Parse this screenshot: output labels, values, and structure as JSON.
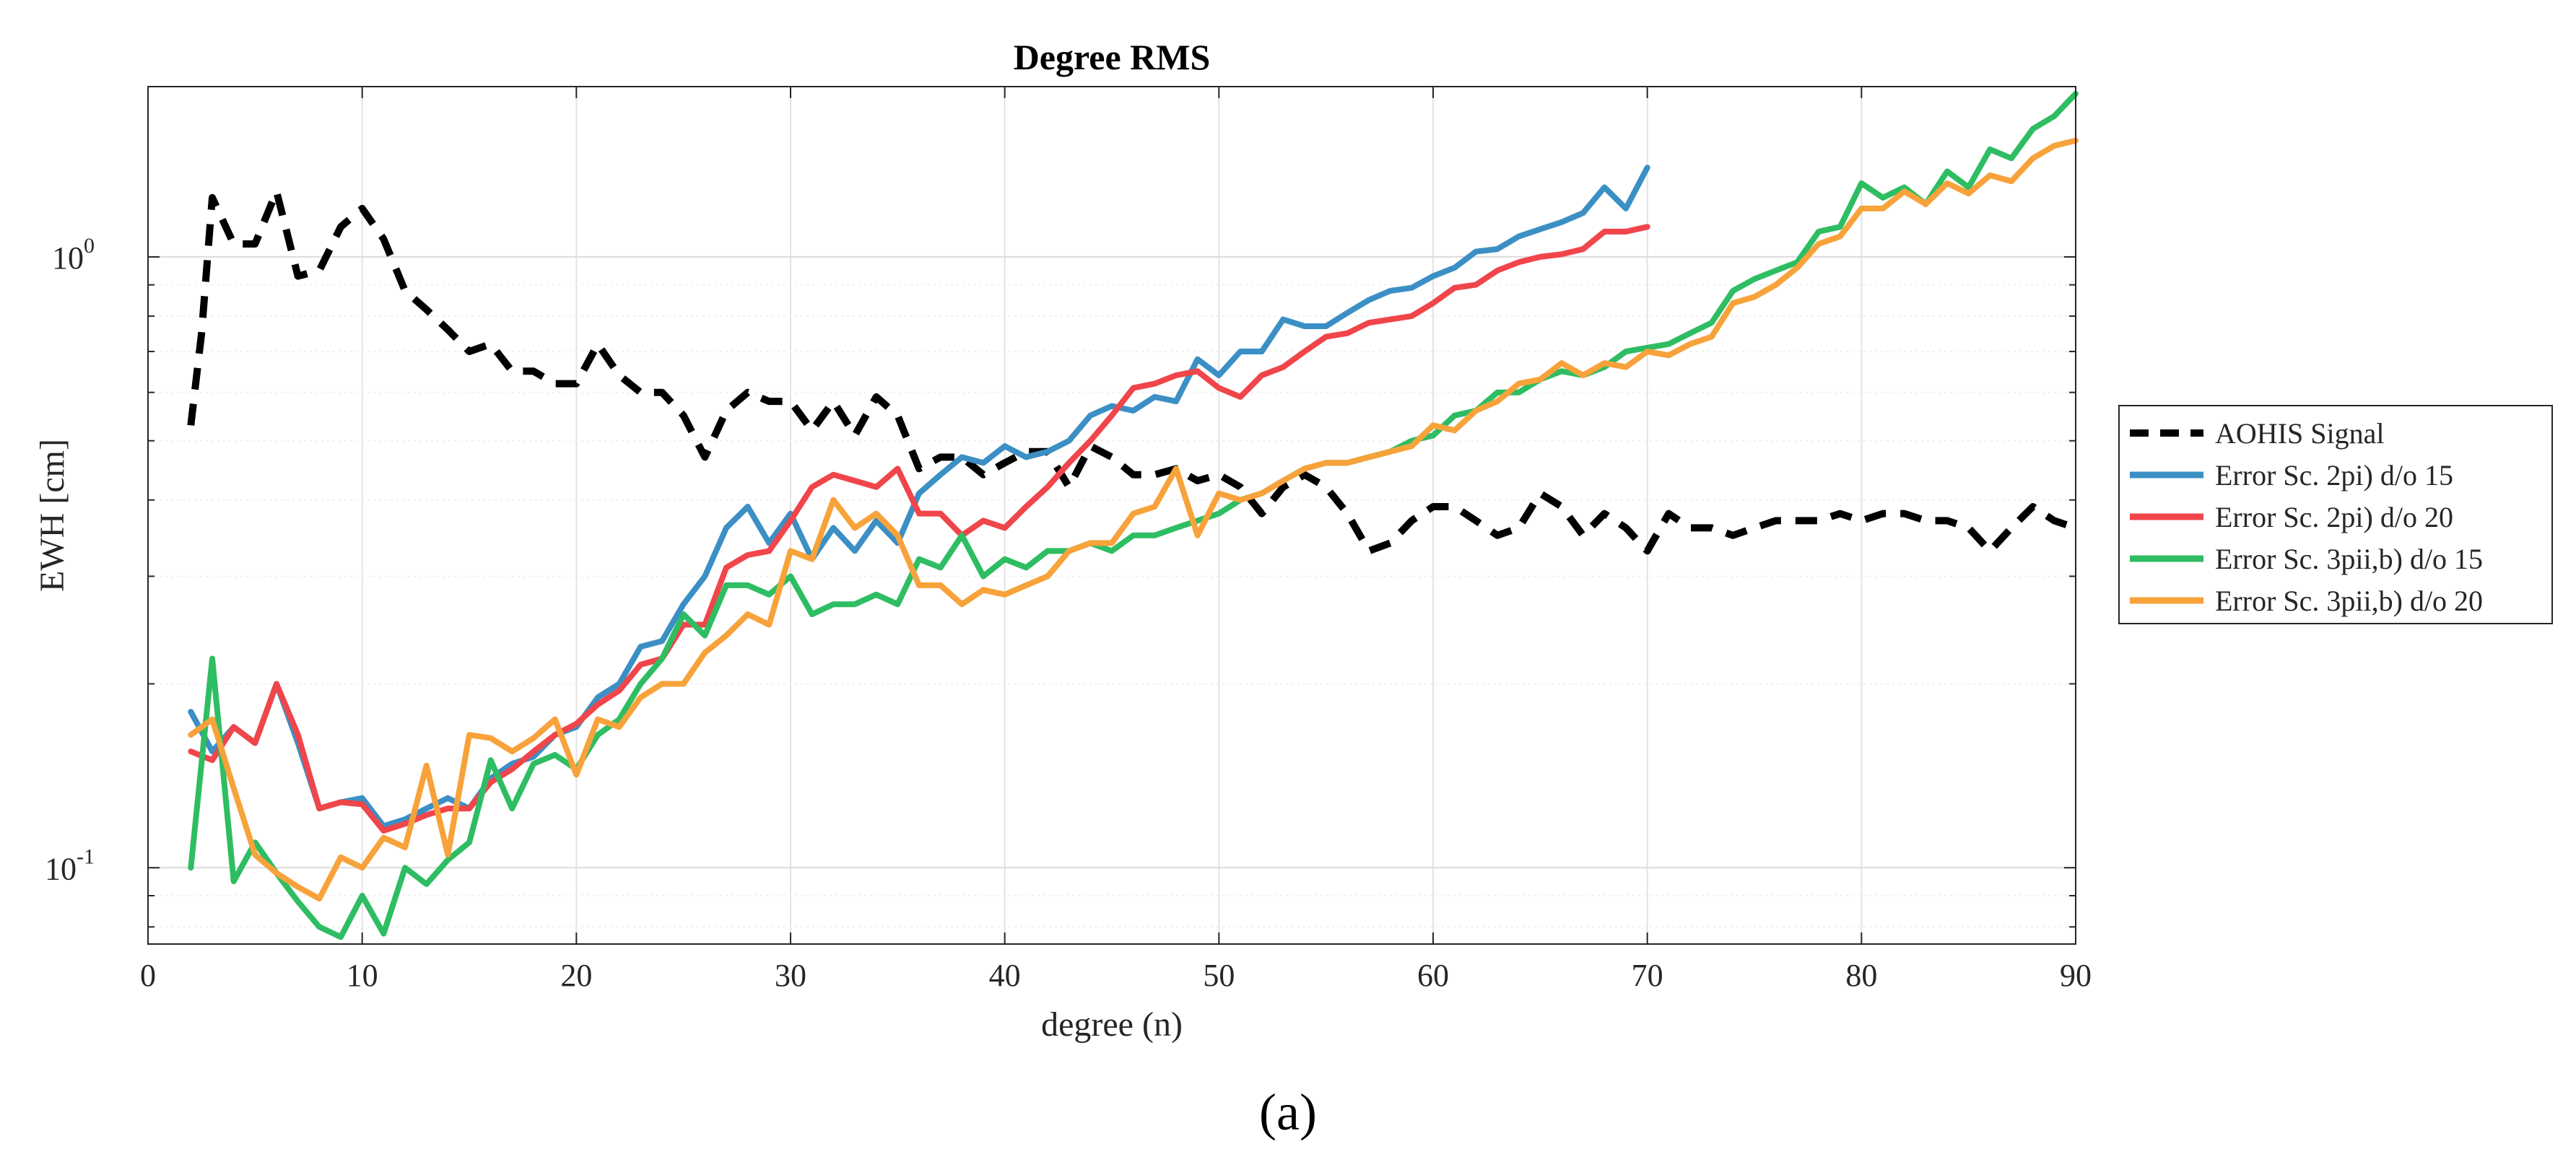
{
  "chart_data": {
    "type": "line",
    "title": "Degree RMS",
    "xlabel": "degree (n)",
    "ylabel": "EWH [cm]",
    "xlim": [
      0,
      90
    ],
    "ylim": [
      0.075,
      1.9
    ],
    "yscale": "log",
    "grid": true,
    "x_ticks": [
      "0",
      "10",
      "20",
      "30",
      "40",
      "50",
      "60",
      "70",
      "80",
      "90"
    ],
    "y_ticks": [
      {
        "base": "10",
        "exp": "-1"
      },
      {
        "base": "10",
        "exp": "0"
      }
    ],
    "legend_position": "outside-right",
    "caption": "(a)",
    "series": [
      {
        "name": "AOHIS Signal",
        "color": "#000000",
        "dash": "dashed",
        "x": [
          2,
          2.5,
          3,
          4,
          5,
          6,
          7,
          8,
          9,
          10,
          11,
          12,
          13,
          14,
          15,
          16,
          17,
          18,
          19,
          20,
          21,
          22,
          23,
          24,
          25,
          26,
          27,
          28,
          29,
          30,
          31,
          32,
          33,
          34,
          35,
          36,
          37,
          38,
          39,
          40,
          41,
          42,
          43,
          44,
          45,
          46,
          47,
          48,
          49,
          50,
          51,
          52,
          53,
          54,
          55,
          56,
          57,
          58,
          59,
          60,
          61,
          62,
          63,
          64,
          65,
          66,
          67,
          68,
          69,
          70,
          71,
          72,
          73,
          74,
          75,
          76,
          77,
          78,
          79,
          80,
          81,
          82,
          83,
          84,
          85,
          86,
          87,
          88,
          89,
          90
        ],
        "values": [
          0.53,
          0.75,
          1.25,
          1.05,
          1.05,
          1.28,
          0.93,
          0.95,
          1.12,
          1.2,
          1.07,
          0.88,
          0.82,
          0.76,
          0.7,
          0.72,
          0.65,
          0.65,
          0.62,
          0.62,
          0.72,
          0.64,
          0.6,
          0.6,
          0.55,
          0.47,
          0.56,
          0.6,
          0.58,
          0.58,
          0.52,
          0.58,
          0.51,
          0.59,
          0.55,
          0.45,
          0.47,
          0.47,
          0.44,
          0.46,
          0.48,
          0.48,
          0.42,
          0.49,
          0.47,
          0.44,
          0.44,
          0.45,
          0.43,
          0.44,
          0.42,
          0.38,
          0.42,
          0.44,
          0.42,
          0.38,
          0.33,
          0.34,
          0.37,
          0.39,
          0.39,
          0.37,
          0.35,
          0.36,
          0.41,
          0.39,
          0.35,
          0.38,
          0.36,
          0.33,
          0.38,
          0.36,
          0.36,
          0.35,
          0.36,
          0.37,
          0.37,
          0.37,
          0.38,
          0.37,
          0.38,
          0.38,
          0.37,
          0.37,
          0.36,
          0.33,
          0.36,
          0.39,
          0.37,
          0.36
        ]
      },
      {
        "name": "Error Sc. 2pi) d/o 15",
        "color": "#3b8fc4",
        "dash": "solid",
        "x": [
          2,
          3,
          4,
          5,
          6,
          7,
          8,
          9,
          10,
          11,
          12,
          13,
          14,
          15,
          16,
          17,
          18,
          19,
          20,
          21,
          22,
          23,
          24,
          25,
          26,
          27,
          28,
          29,
          30,
          31,
          32,
          33,
          34,
          35,
          36,
          37,
          38,
          39,
          40,
          41,
          42,
          43,
          44,
          45,
          46,
          47,
          48,
          49,
          50,
          51,
          52,
          53,
          54,
          55,
          56,
          57,
          58,
          59,
          60,
          61,
          62,
          63,
          64,
          65,
          66,
          67,
          68,
          69,
          70
        ],
        "values": [
          0.18,
          0.155,
          0.17,
          0.16,
          0.2,
          0.16,
          0.125,
          0.128,
          0.13,
          0.117,
          0.12,
          0.125,
          0.13,
          0.125,
          0.14,
          0.148,
          0.152,
          0.165,
          0.17,
          0.19,
          0.2,
          0.23,
          0.235,
          0.27,
          0.3,
          0.36,
          0.39,
          0.34,
          0.38,
          0.32,
          0.36,
          0.33,
          0.37,
          0.34,
          0.41,
          0.44,
          0.47,
          0.46,
          0.49,
          0.47,
          0.48,
          0.5,
          0.55,
          0.57,
          0.56,
          0.59,
          0.58,
          0.68,
          0.64,
          0.7,
          0.7,
          0.79,
          0.77,
          0.77,
          0.81,
          0.85,
          0.88,
          0.89,
          0.93,
          0.96,
          1.02,
          1.03,
          1.08,
          1.11,
          1.14,
          1.18,
          1.3,
          1.2,
          1.4
        ]
      },
      {
        "name": "Error Sc. 2pi) d/o 20",
        "color": "#f0454a",
        "dash": "solid",
        "x": [
          2,
          3,
          4,
          5,
          6,
          7,
          8,
          9,
          10,
          11,
          12,
          13,
          14,
          15,
          16,
          17,
          18,
          19,
          20,
          21,
          22,
          23,
          24,
          25,
          26,
          27,
          28,
          29,
          30,
          31,
          32,
          33,
          34,
          35,
          36,
          37,
          38,
          39,
          40,
          41,
          42,
          43,
          44,
          45,
          46,
          47,
          48,
          49,
          50,
          51,
          52,
          53,
          54,
          55,
          56,
          57,
          58,
          59,
          60,
          61,
          62,
          63,
          64,
          65,
          66,
          67,
          68,
          69,
          70
        ],
        "values": [
          0.155,
          0.15,
          0.17,
          0.16,
          0.2,
          0.165,
          0.125,
          0.128,
          0.127,
          0.115,
          0.118,
          0.122,
          0.125,
          0.125,
          0.138,
          0.145,
          0.155,
          0.165,
          0.172,
          0.185,
          0.195,
          0.215,
          0.22,
          0.25,
          0.25,
          0.31,
          0.325,
          0.33,
          0.37,
          0.42,
          0.44,
          0.43,
          0.42,
          0.45,
          0.38,
          0.38,
          0.35,
          0.37,
          0.36,
          0.39,
          0.42,
          0.46,
          0.5,
          0.55,
          0.61,
          0.62,
          0.64,
          0.65,
          0.61,
          0.59,
          0.64,
          0.66,
          0.7,
          0.74,
          0.75,
          0.78,
          0.79,
          0.8,
          0.84,
          0.89,
          0.9,
          0.95,
          0.98,
          1.0,
          1.01,
          1.03,
          1.1,
          1.1,
          1.12
        ]
      },
      {
        "name": "Error Sc. 3pii,b) d/o 15",
        "color": "#2ebd62",
        "dash": "solid",
        "x": [
          2,
          3,
          4,
          5,
          6,
          7,
          8,
          9,
          10,
          11,
          12,
          13,
          14,
          15,
          16,
          17,
          18,
          19,
          20,
          21,
          22,
          23,
          24,
          25,
          26,
          27,
          28,
          29,
          30,
          31,
          32,
          33,
          34,
          35,
          36,
          37,
          38,
          39,
          40,
          41,
          42,
          43,
          44,
          45,
          46,
          47,
          48,
          49,
          50,
          51,
          52,
          53,
          54,
          55,
          56,
          57,
          58,
          59,
          60,
          61,
          62,
          63,
          64,
          65,
          66,
          67,
          68,
          69,
          70,
          71,
          72,
          73,
          74,
          75,
          76,
          77,
          78,
          79,
          80,
          81,
          82,
          83,
          84,
          85,
          86,
          87,
          88,
          89,
          90
        ],
        "values": [
          0.1,
          0.22,
          0.095,
          0.11,
          0.098,
          0.088,
          0.08,
          0.077,
          0.09,
          0.078,
          0.1,
          0.094,
          0.103,
          0.11,
          0.15,
          0.125,
          0.148,
          0.153,
          0.145,
          0.165,
          0.175,
          0.2,
          0.22,
          0.26,
          0.24,
          0.29,
          0.29,
          0.28,
          0.3,
          0.26,
          0.27,
          0.27,
          0.28,
          0.27,
          0.32,
          0.31,
          0.35,
          0.3,
          0.32,
          0.31,
          0.33,
          0.33,
          0.34,
          0.33,
          0.35,
          0.35,
          0.36,
          0.37,
          0.38,
          0.4,
          0.41,
          0.43,
          0.45,
          0.46,
          0.46,
          0.47,
          0.48,
          0.5,
          0.51,
          0.55,
          0.56,
          0.6,
          0.6,
          0.63,
          0.65,
          0.64,
          0.66,
          0.7,
          0.71,
          0.72,
          0.75,
          0.78,
          0.88,
          0.92,
          0.95,
          0.98,
          1.1,
          1.12,
          1.32,
          1.25,
          1.3,
          1.22,
          1.38,
          1.3,
          1.5,
          1.45,
          1.62,
          1.7,
          1.85
        ]
      },
      {
        "name": "Error Sc. 3pii,b) d/o 20",
        "color": "#f7a23a",
        "dash": "solid",
        "x": [
          2,
          3,
          4,
          5,
          6,
          7,
          8,
          9,
          10,
          11,
          12,
          13,
          14,
          15,
          16,
          17,
          18,
          19,
          20,
          21,
          22,
          23,
          24,
          25,
          26,
          27,
          28,
          29,
          30,
          31,
          32,
          33,
          34,
          35,
          36,
          37,
          38,
          39,
          40,
          41,
          42,
          43,
          44,
          45,
          46,
          47,
          48,
          49,
          50,
          51,
          52,
          53,
          54,
          55,
          56,
          57,
          58,
          59,
          60,
          61,
          62,
          63,
          64,
          65,
          66,
          67,
          68,
          69,
          70,
          71,
          72,
          73,
          74,
          75,
          76,
          77,
          78,
          79,
          80,
          81,
          82,
          83,
          84,
          85,
          86,
          87,
          88,
          89,
          90
        ],
        "values": [
          0.165,
          0.175,
          0.135,
          0.105,
          0.098,
          0.093,
          0.089,
          0.104,
          0.1,
          0.112,
          0.108,
          0.147,
          0.105,
          0.165,
          0.163,
          0.155,
          0.163,
          0.175,
          0.142,
          0.175,
          0.17,
          0.19,
          0.2,
          0.2,
          0.225,
          0.24,
          0.26,
          0.25,
          0.33,
          0.32,
          0.4,
          0.36,
          0.38,
          0.35,
          0.29,
          0.29,
          0.27,
          0.285,
          0.28,
          0.29,
          0.3,
          0.33,
          0.34,
          0.34,
          0.38,
          0.39,
          0.45,
          0.35,
          0.41,
          0.4,
          0.41,
          0.43,
          0.45,
          0.46,
          0.46,
          0.47,
          0.48,
          0.49,
          0.53,
          0.52,
          0.56,
          0.58,
          0.62,
          0.63,
          0.67,
          0.64,
          0.67,
          0.66,
          0.7,
          0.69,
          0.72,
          0.74,
          0.84,
          0.86,
          0.9,
          0.96,
          1.05,
          1.08,
          1.2,
          1.2,
          1.28,
          1.22,
          1.32,
          1.27,
          1.36,
          1.33,
          1.45,
          1.52,
          1.55
        ]
      }
    ]
  }
}
